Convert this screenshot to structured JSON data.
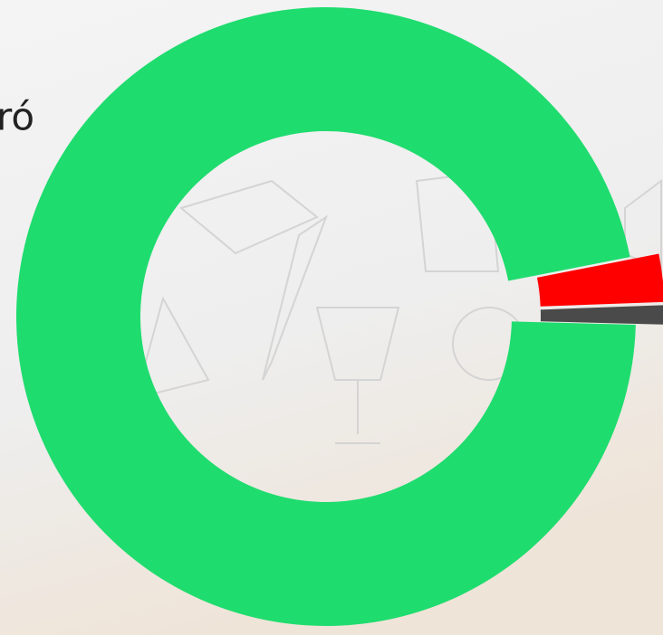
{
  "chart_data": {
    "type": "donut",
    "title": "ró",
    "categories": [
      null,
      null,
      null
    ],
    "values": [
      96.5,
      2.5,
      1
    ],
    "colors": [
      "#1fdc6e",
      "#ff0000",
      "#4a4a4a"
    ],
    "exploded": [
      false,
      true,
      true
    ]
  }
}
